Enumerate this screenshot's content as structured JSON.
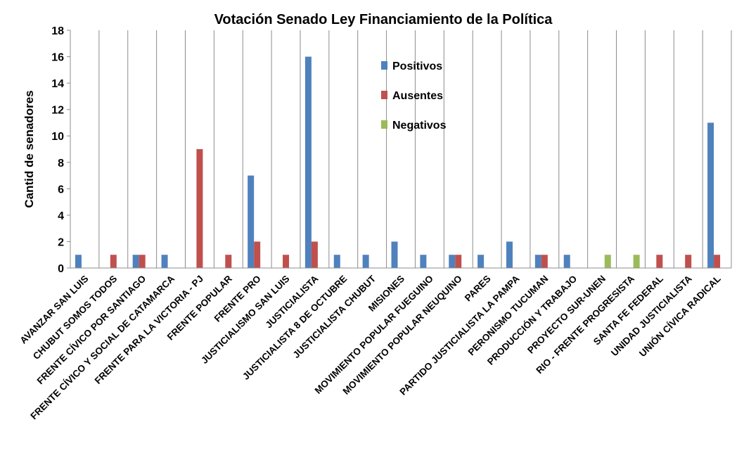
{
  "chart_data": {
    "type": "bar",
    "title": "Votación Senado Ley Financiamiento  de la Política",
    "xlabel": "",
    "ylabel": "Cantid de senadores",
    "ylim": [
      0,
      18
    ],
    "yticks": [
      0,
      2,
      4,
      6,
      8,
      10,
      12,
      14,
      16,
      18
    ],
    "grid": "vertical-category-lines",
    "legend_position": "upper-middle",
    "categories": [
      "AVANZAR SAN LUIS",
      "CHUBUT SOMOS TODOS",
      "FRENTE CÍVICO POR SANTIAGO",
      "FRENTE CÍVICO Y SOCIAL DE CATAMARCA",
      "FRENTE PARA LA VICTORIA - PJ",
      "FRENTE POPULAR",
      "FRENTE PRO",
      "JUSTICIALISMO SAN LUIS",
      "JUSTICIALISTA",
      "JUSTICIALISTA 8 DE OCTUBRE",
      "JUSTICIALISTA CHUBUT",
      "MISIONES",
      "MOVIMIENTO POPULAR FUEGUINO",
      "MOVIMIENTO POPULAR NEUQUINO",
      "PARES",
      "PARTIDO JUSTICIALISTA LA PAMPA",
      "PERONISMO TUCUMAN",
      "PRODUCCIÓN Y TRABAJO",
      "PROYECTO SUR-UNEN",
      "RIO - FRENTE PROGRESISTA",
      "SANTA FE FEDERAL",
      "UNIDAD JUSTICIALISTA",
      "UNIÓN CÍVICA RADICAL"
    ],
    "series": [
      {
        "name": "Positivos",
        "color": "#4F81BD",
        "values": [
          1,
          0,
          1,
          1,
          0,
          0,
          7,
          0,
          16,
          1,
          1,
          2,
          1,
          1,
          1,
          2,
          1,
          1,
          0,
          0,
          0,
          0,
          11
        ]
      },
      {
        "name": "Ausentes",
        "color": "#C0504D",
        "values": [
          0,
          1,
          1,
          0,
          9,
          1,
          2,
          1,
          2,
          0,
          0,
          0,
          0,
          1,
          0,
          0,
          1,
          0,
          0,
          0,
          1,
          1,
          1
        ]
      },
      {
        "name": "Negativos",
        "color": "#9BBB59",
        "values": [
          0,
          0,
          0,
          0,
          0,
          0,
          0,
          0,
          0,
          0,
          0,
          0,
          0,
          0,
          0,
          0,
          0,
          0,
          1,
          1,
          0,
          0,
          0
        ]
      }
    ]
  }
}
